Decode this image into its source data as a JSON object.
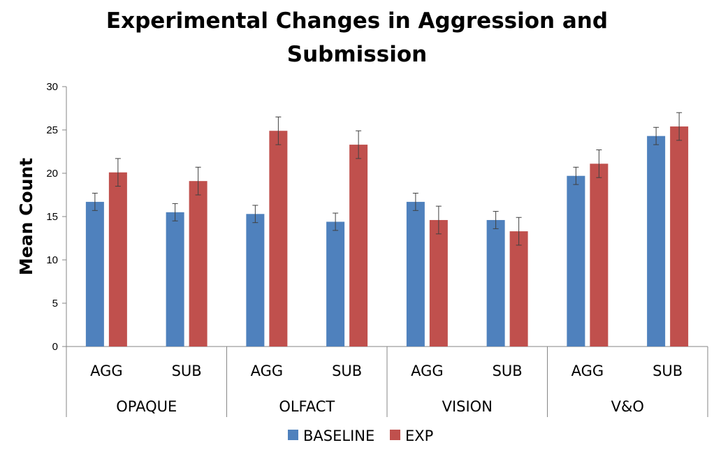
{
  "chart_data": {
    "type": "bar",
    "title_lines": [
      "Experimental Changes in Aggression and",
      "Submission"
    ],
    "ylabel": "Mean Count",
    "xlabel": "",
    "ylim": [
      0,
      30
    ],
    "yticks": [
      "0",
      "5",
      "10",
      "15",
      "20",
      "25",
      "30"
    ],
    "groups": [
      "OPAQUE",
      "OLFACT",
      "VISION",
      "V&O"
    ],
    "subcategories": [
      "AGG",
      "SUB",
      "AGG",
      "SUB",
      "AGG",
      "SUB",
      "AGG",
      "SUB"
    ],
    "series": [
      {
        "name": "BASELINE",
        "color": "#4F81BD",
        "values": [
          16.7,
          15.5,
          15.3,
          14.4,
          16.7,
          14.6,
          19.7,
          24.3
        ],
        "errors": [
          1.0,
          1.0,
          1.0,
          1.0,
          1.0,
          1.0,
          1.0,
          1.0
        ]
      },
      {
        "name": "EXP",
        "color": "#C0504D",
        "values": [
          20.1,
          19.1,
          24.9,
          23.3,
          14.6,
          13.3,
          21.1,
          25.4
        ],
        "errors": [
          1.6,
          1.6,
          1.6,
          1.6,
          1.6,
          1.6,
          1.6,
          1.6
        ]
      }
    ],
    "legend_position": "bottom",
    "grid": false
  }
}
